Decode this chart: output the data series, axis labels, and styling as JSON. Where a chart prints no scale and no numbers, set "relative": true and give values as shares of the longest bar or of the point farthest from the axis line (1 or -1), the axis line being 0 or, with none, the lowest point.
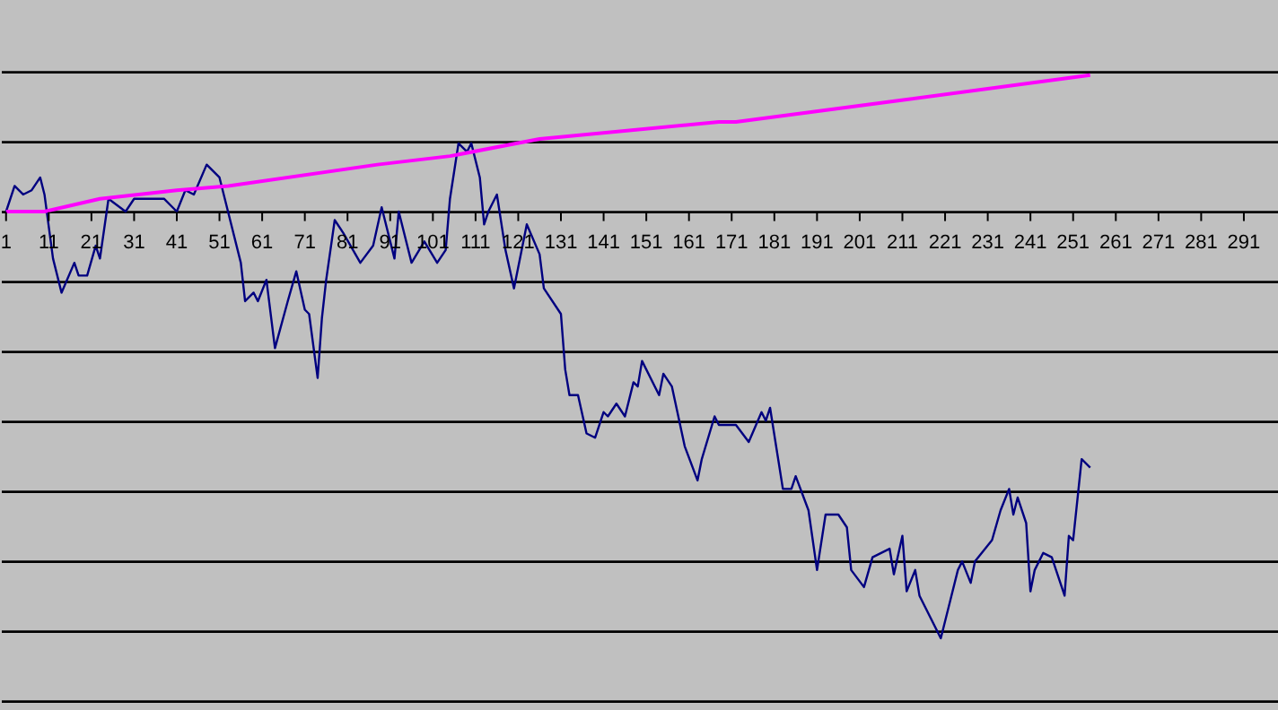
{
  "chart_data": {
    "type": "line",
    "relative": true,
    "grid": "y",
    "marker": "none",
    "line_style": "solid",
    "xlim": [
      0,
      299
    ],
    "xticks": [
      1,
      11,
      21,
      31,
      41,
      51,
      61,
      71,
      81,
      91,
      101,
      111,
      121,
      131,
      141,
      151,
      161,
      171,
      181,
      191,
      201,
      211,
      221,
      231,
      241,
      251,
      261,
      271,
      281,
      291
    ],
    "series": [
      {
        "color": "#000080",
        "x": [
          1,
          3,
          5,
          7,
          9,
          10,
          12,
          14,
          17,
          18,
          20,
          22,
          23,
          25,
          29,
          31,
          35,
          38,
          41,
          43,
          45,
          48,
          51,
          53,
          56,
          57,
          59,
          60,
          62,
          64,
          67,
          69,
          71,
          72,
          74,
          75,
          76,
          78,
          80,
          84,
          87,
          89,
          92,
          93,
          96,
          99,
          102,
          104,
          105,
          107,
          109,
          110,
          112,
          113,
          114,
          116,
          118,
          120,
          123,
          126,
          127,
          131,
          132,
          133,
          135,
          137,
          139,
          141,
          142,
          144,
          146,
          148,
          149,
          150,
          154,
          155,
          157,
          160,
          163,
          164,
          167,
          168,
          172,
          175,
          178,
          179,
          180,
          183,
          185,
          186,
          189,
          191,
          193,
          196,
          198,
          199,
          202,
          204,
          208,
          209,
          211,
          212,
          214,
          215,
          220,
          222,
          224,
          225,
          227,
          228,
          232,
          234,
          236,
          237,
          238,
          240,
          241,
          242,
          244,
          246,
          249,
          250,
          251,
          253,
          255
        ],
        "values": [
          0,
          0.06,
          0.04,
          0.05,
          0.08,
          0.04,
          -0.11,
          -0.19,
          -0.12,
          -0.15,
          -0.15,
          -0.08,
          -0.11,
          0.03,
          0,
          0.03,
          0.03,
          0.03,
          0,
          0.05,
          0.04,
          0.11,
          0.08,
          0,
          -0.12,
          -0.21,
          -0.19,
          -0.21,
          -0.16,
          -0.32,
          -0.21,
          -0.14,
          -0.23,
          -0.24,
          -0.39,
          -0.25,
          -0.16,
          -0.02,
          -0.05,
          -0.12,
          -0.08,
          0.01,
          -0.11,
          0,
          -0.12,
          -0.07,
          -0.12,
          -0.09,
          0.03,
          0.16,
          0.14,
          0.16,
          0.08,
          -0.03,
          0,
          0.04,
          -0.09,
          -0.18,
          -0.03,
          -0.1,
          -0.18,
          -0.24,
          -0.37,
          -0.43,
          -0.43,
          -0.52,
          -0.53,
          -0.47,
          -0.48,
          -0.45,
          -0.48,
          -0.4,
          -0.41,
          -0.35,
          -0.43,
          -0.38,
          -0.41,
          -0.55,
          -0.63,
          -0.58,
          -0.48,
          -0.5,
          -0.5,
          -0.54,
          -0.47,
          -0.49,
          -0.46,
          -0.65,
          -0.65,
          -0.62,
          -0.7,
          -0.84,
          -0.71,
          -0.71,
          -0.74,
          -0.84,
          -0.88,
          -0.81,
          -0.79,
          -0.85,
          -0.76,
          -0.89,
          -0.84,
          -0.9,
          -1,
          -0.92,
          -0.84,
          -0.82,
          -0.87,
          -0.82,
          -0.77,
          -0.7,
          -0.65,
          -0.71,
          -0.67,
          -0.73,
          -0.89,
          -0.84,
          -0.8,
          -0.81,
          -0.9,
          -0.76,
          -0.77,
          -0.58,
          -0.6
        ]
      },
      {
        "color": "#ff00ff",
        "x": [
          1,
          10,
          23,
          41,
          53,
          88,
          105,
          126,
          168,
          172,
          210,
          255
        ],
        "values": [
          0,
          0,
          0.03,
          0.05,
          0.06,
          0.11,
          0.13,
          0.17,
          0.21,
          0.21,
          0.26,
          0.32
        ]
      }
    ]
  }
}
